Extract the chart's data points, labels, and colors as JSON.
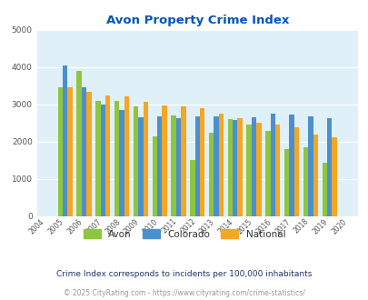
{
  "title": "Avon Property Crime Index",
  "years": [
    2004,
    2005,
    2006,
    2007,
    2008,
    2009,
    2010,
    2011,
    2012,
    2013,
    2014,
    2015,
    2016,
    2017,
    2018,
    2019,
    2020
  ],
  "avon": [
    0,
    3450,
    3900,
    3100,
    3100,
    2950,
    2150,
    2700,
    1500,
    2230,
    2600,
    2450,
    2280,
    1800,
    1850,
    1430,
    0
  ],
  "colorado": [
    0,
    4050,
    3450,
    3000,
    2850,
    2650,
    2680,
    2620,
    2680,
    2680,
    2590,
    2650,
    2750,
    2720,
    2670,
    2620,
    0
  ],
  "national": [
    0,
    3450,
    3350,
    3250,
    3220,
    3060,
    2960,
    2940,
    2900,
    2740,
    2620,
    2500,
    2460,
    2380,
    2200,
    2120,
    0
  ],
  "avon_color": "#8dc63f",
  "colorado_color": "#4d8fcc",
  "national_color": "#f5a623",
  "bg_color": "#e0f0f8",
  "title_color": "#0055bb",
  "subtitle": "Crime Index corresponds to incidents per 100,000 inhabitants",
  "footer": "© 2025 CityRating.com - https://www.cityrating.com/crime-statistics/",
  "ylim": [
    0,
    5000
  ],
  "yticks": [
    0,
    1000,
    2000,
    3000,
    4000,
    5000
  ],
  "figsize": [
    4.06,
    3.3
  ],
  "dpi": 100
}
